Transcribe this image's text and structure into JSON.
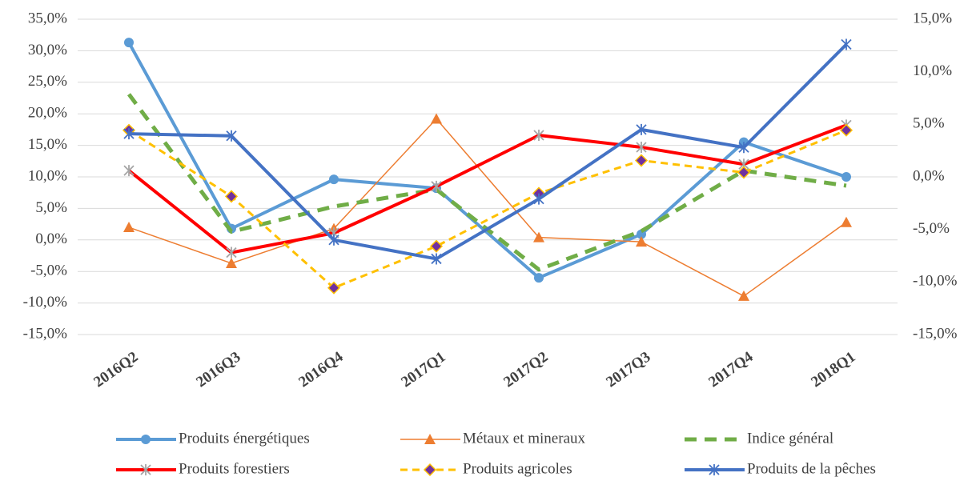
{
  "chart_data": {
    "type": "line",
    "categories": [
      "2016Q2",
      "2016Q3",
      "2016Q4",
      "2017Q1",
      "2017Q2",
      "2017Q3",
      "2017Q4",
      "2018Q1"
    ],
    "ylim": [
      -15,
      35
    ],
    "yticks": [
      {
        "value": -15,
        "label": "-15,0%"
      },
      {
        "value": -10,
        "label": "-10,0%"
      },
      {
        "value": -5,
        "label": "-5,0%"
      },
      {
        "value": 0,
        "label": "0,0%"
      },
      {
        "value": 5,
        "label": "5,0%"
      },
      {
        "value": 10,
        "label": "10,0%"
      },
      {
        "value": 15,
        "label": "15,0%"
      },
      {
        "value": 20,
        "label": "20,0%"
      },
      {
        "value": 25,
        "label": "25,0%"
      },
      {
        "value": 30,
        "label": "30,0%"
      },
      {
        "value": 35,
        "label": "35,0%"
      }
    ],
    "y2lim": [
      -15,
      15
    ],
    "y2ticks": [
      {
        "value": -15,
        "label": "-15,0%"
      },
      {
        "value": -10,
        "label": "-10,0%"
      },
      {
        "value": -5,
        "label": "-5,0%"
      },
      {
        "value": 0,
        "label": "0,0%"
      },
      {
        "value": 5,
        "label": "5,0%"
      },
      {
        "value": 10,
        "label": "10,0%"
      },
      {
        "value": 15,
        "label": "15,0%"
      }
    ],
    "grid": true,
    "legend": "bottom",
    "series": [
      {
        "name": "Produits énergétiques",
        "color": "#5b9bd5",
        "width": 4,
        "marker": "circle",
        "marker_color": "#5b9bd5",
        "values": [
          31.3,
          1.8,
          9.6,
          8.2,
          -6.0,
          0.9,
          15.5,
          10.0
        ]
      },
      {
        "name": "Métaux et mineraux",
        "color": "#ed7d31",
        "width": 1.5,
        "marker": "triangle",
        "marker_color": "#ed7d31",
        "values": [
          2.0,
          -3.7,
          1.8,
          19.2,
          0.4,
          -0.3,
          -8.9,
          2.8
        ]
      },
      {
        "name": "Indice général",
        "color": "#70ad47",
        "width": 5,
        "dash": true,
        "values": [
          23.1,
          1.3,
          5.3,
          8.0,
          -4.7,
          1.4,
          11.0,
          8.6
        ]
      },
      {
        "name": "Produits forestiers",
        "color": "#ff0000",
        "width": 4,
        "marker": "star",
        "marker_color": "#a5a5a5",
        "values": [
          11.0,
          -2.0,
          1.1,
          8.5,
          16.6,
          14.7,
          12.0,
          18.2
        ]
      },
      {
        "name": "Produits agricoles",
        "color": "#ffc000",
        "width": 3,
        "dash": true,
        "marker": "diamond",
        "marker_color": "#7030a0",
        "values": [
          17.4,
          6.9,
          -7.6,
          -1.0,
          7.4,
          12.6,
          10.7,
          17.4
        ]
      },
      {
        "name": "Produits de la pêches",
        "color": "#4472c4",
        "width": 4,
        "marker": "star",
        "marker_color": "#4472c4",
        "axis": "y2",
        "values": [
          4.1,
          3.9,
          -6.0,
          -7.8,
          -2.1,
          4.5,
          2.8,
          12.6
        ]
      }
    ]
  }
}
